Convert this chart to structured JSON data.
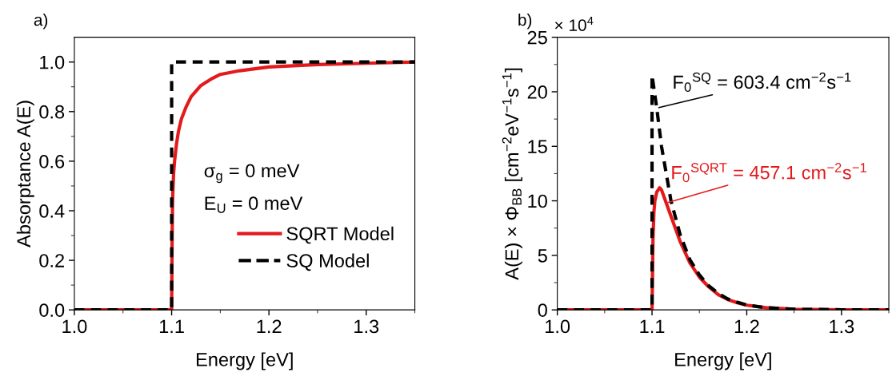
{
  "chart_data": [
    {
      "type": "line",
      "title": "a)",
      "xlabel": "Energy [eV]",
      "ylabel": "Absorptance A(E)",
      "xlim": [
        1.0,
        1.35
      ],
      "xticks": [
        {
          "value": 1.0,
          "label": "1.0"
        },
        1.1,
        1.2,
        1.3
      ],
      "ylim": [
        0,
        1.1
      ],
      "yticks": [
        {
          "value": 0,
          "label": "0.0"
        },
        0.2,
        0.4,
        0.6,
        0.8,
        {
          "value": 1.0,
          "label": "1.0"
        }
      ],
      "legend": "bottom right",
      "grid": false,
      "marker": "none",
      "annotations": [
        "σ$_{g}$ = 0 meV",
        "E$_{U}$ = 0 meV"
      ],
      "series": [
        {
          "name": "SQRT Model",
          "color": "#e31a1c",
          "line_style": "solid",
          "x": [
            1.0,
            1.1,
            1.1005,
            1.101,
            1.102,
            1.103,
            1.105,
            1.107,
            1.11,
            1.115,
            1.12,
            1.13,
            1.14,
            1.15,
            1.17,
            1.2,
            1.25,
            1.3,
            1.35
          ],
          "values": [
            0,
            0,
            0.3,
            0.45,
            0.55,
            0.6,
            0.67,
            0.72,
            0.77,
            0.82,
            0.86,
            0.905,
            0.93,
            0.95,
            0.965,
            0.98,
            0.99,
            0.995,
            1.0
          ]
        },
        {
          "name": "SQ Model",
          "color": "#000000",
          "line_style": "dashed",
          "x": [
            1.0,
            1.1,
            1.1,
            1.35
          ],
          "values": [
            0,
            0,
            1.0,
            1.0
          ]
        }
      ]
    },
    {
      "type": "line",
      "title": "b)",
      "xlabel": "Energy [eV]",
      "ylabel": "A(E) × Φ$_{BB}$ [cm$^{−2}$eV$^{−1}$s$^{−1}$]",
      "xlim": [
        1.0,
        1.35
      ],
      "xticks": [
        {
          "value": 1.0,
          "label": "1.0"
        },
        1.1,
        1.2,
        1.3
      ],
      "ylim": [
        0,
        25
      ],
      "yticks": [
        0,
        5,
        10,
        15,
        20,
        25
      ],
      "grid": false,
      "marker": "none",
      "annotations": [
        "× 10$^{4}$",
        {
          "text": "F$_{0}$$^{SQ}$ = 603.4 cm$^{−2}$s$^{−1}$",
          "x": 1.105,
          "y": 18.5
        },
        {
          "text": "F$_{0}$$^{SQRT}$ = 457.1 cm$^{−2}$s$^{−1}$",
          "x": 1.115,
          "y": 9.8
        }
      ],
      "series": [
        {
          "color": "#e31a1c",
          "line_style": "solid",
          "x": [
            1.0,
            1.1,
            1.101,
            1.102,
            1.103,
            1.105,
            1.108,
            1.11,
            1.115,
            1.12,
            1.13,
            1.14,
            1.15,
            1.16,
            1.17,
            1.18,
            1.19,
            1.2,
            1.22,
            1.25,
            1.3,
            1.35
          ],
          "values": [
            0,
            0,
            6.5,
            9.0,
            10.0,
            10.8,
            11.2,
            11.0,
            9.8,
            8.6,
            6.2,
            4.3,
            3.0,
            2.1,
            1.4,
            0.95,
            0.65,
            0.43,
            0.2,
            0.06,
            0.01,
            0
          ]
        },
        {
          "color": "#000000",
          "line_style": "dashed",
          "x": [
            1.0,
            1.1,
            1.1,
            1.105,
            1.11,
            1.12,
            1.13,
            1.14,
            1.15,
            1.16,
            1.17,
            1.18,
            1.19,
            1.2,
            1.22,
            1.25,
            1.3,
            1.35
          ],
          "values": [
            0,
            0,
            21.5,
            18.5,
            15.0,
            10.0,
            6.8,
            4.6,
            3.2,
            2.2,
            1.5,
            1.0,
            0.7,
            0.45,
            0.2,
            0.06,
            0.01,
            0
          ]
        }
      ]
    }
  ]
}
